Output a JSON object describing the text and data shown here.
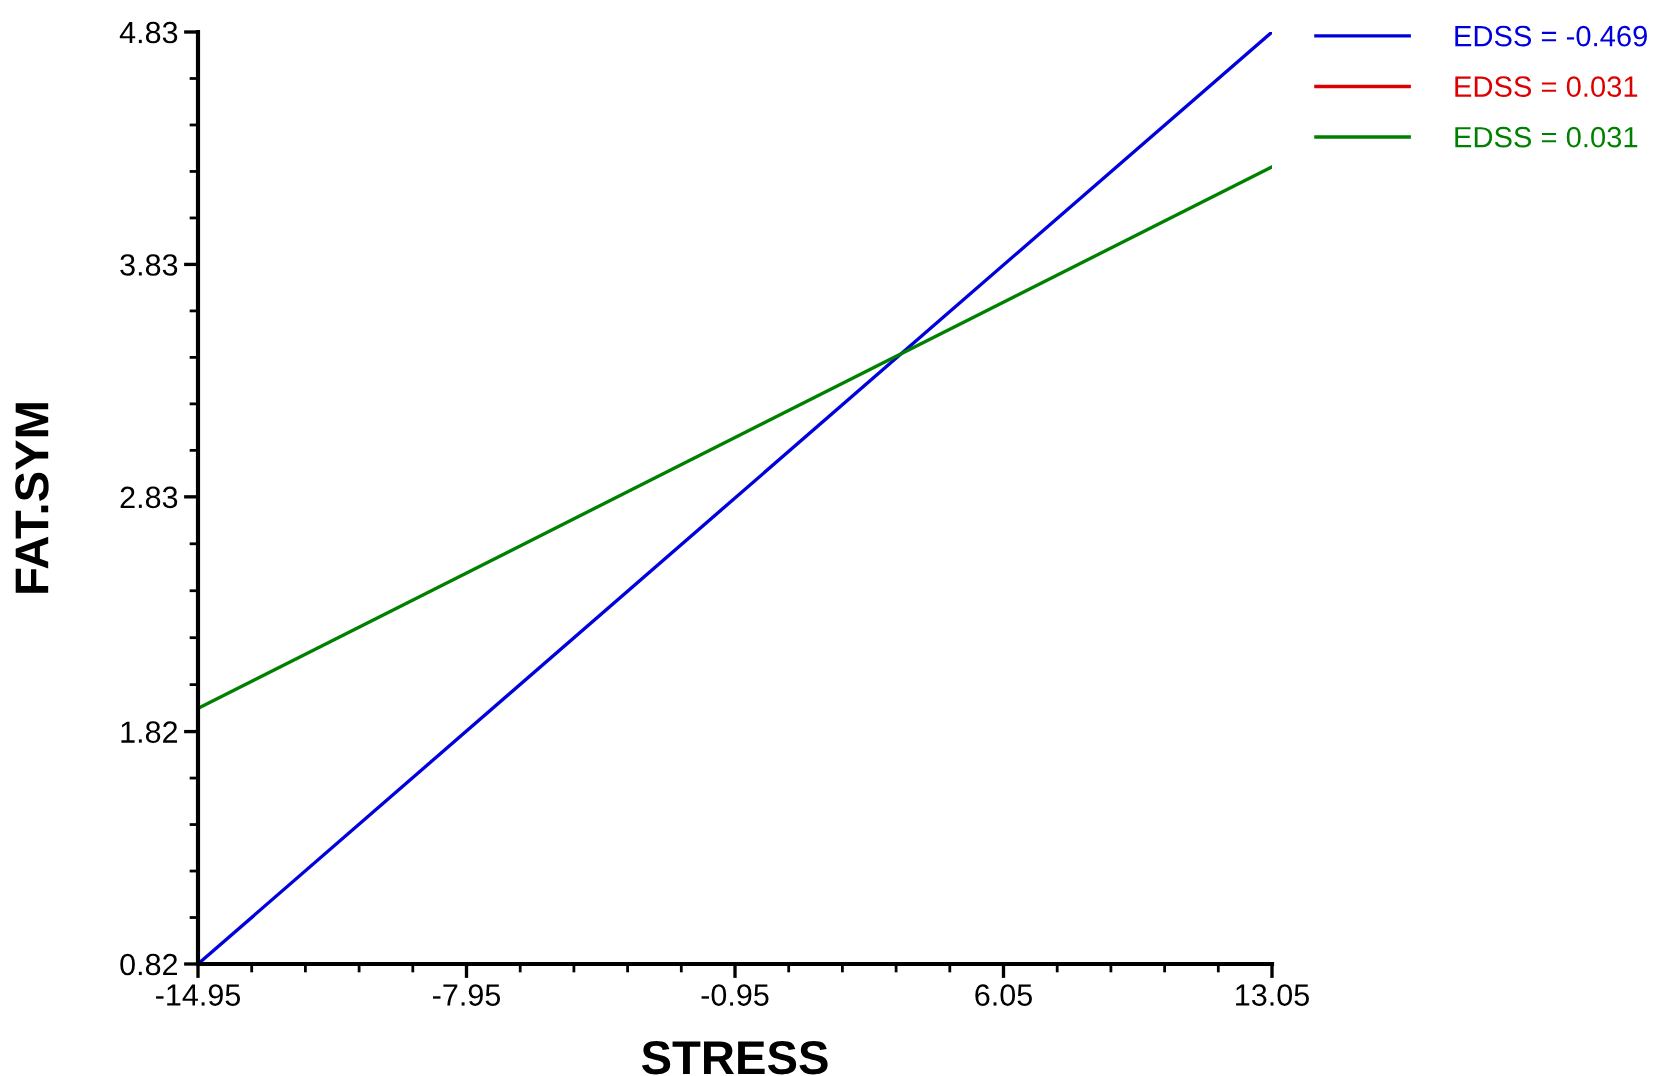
{
  "chart_data": {
    "type": "line",
    "xlabel": "STRESS",
    "ylabel": "FAT.SYM",
    "x": [
      -14.95,
      13.05
    ],
    "series": [
      {
        "name": "EDSS = -0.469",
        "color": "#0000dd",
        "values": [
          0.82,
          4.83
        ]
      },
      {
        "name": "EDSS = 0.031",
        "color": "#dd0000",
        "values": [
          null,
          null
        ]
      },
      {
        "name": "EDSS = 0.031",
        "color": "#008000",
        "values": [
          1.92,
          4.25
        ]
      }
    ],
    "xlim": [
      -14.95,
      13.05
    ],
    "xticks": [
      -14.95,
      -7.95,
      -0.95,
      6.05,
      13.05
    ],
    "ylim": [
      0.82,
      4.83
    ],
    "yticks": [
      {
        "value": 0.82,
        "label": "0.82"
      },
      {
        "value": 1.82,
        "label": "1.82"
      },
      {
        "value": 2.83,
        "label": "2.83"
      },
      {
        "value": 3.83,
        "label": "3.83"
      },
      {
        "value": 4.83,
        "label": "4.83"
      }
    ],
    "grid": false,
    "legend": "top right",
    "marker": "none",
    "line_style": "solid"
  }
}
